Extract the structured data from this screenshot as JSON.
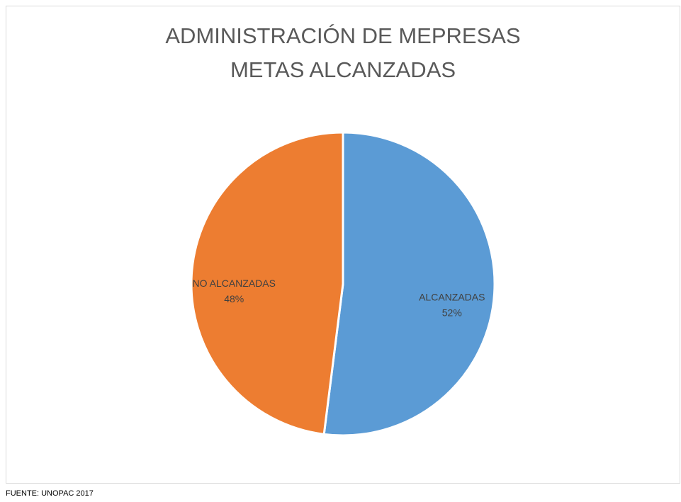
{
  "chart_data": {
    "type": "pie",
    "title": [
      "ADMINISTRACIÓN DE MEPRESAS",
      "METAS ALCANZADAS"
    ],
    "categories": [
      "ALCANZADAS",
      "NO ALCANZADAS"
    ],
    "values": [
      52,
      48
    ],
    "value_labels": [
      "52%",
      "48%"
    ],
    "colors": [
      "#5b9bd5",
      "#ed7d31"
    ],
    "source": "FUENTE: UNOPAC 2017"
  }
}
